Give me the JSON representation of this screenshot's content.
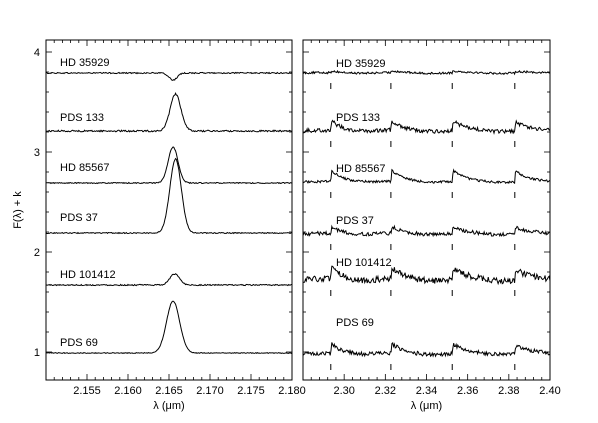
{
  "chart_data": [
    {
      "type": "line",
      "panel": "left",
      "xlabel": "λ (μm)",
      "ylabel": "F(λ) + k",
      "xlim": [
        2.15,
        2.18
      ],
      "ylim": [
        0.72,
        4.12
      ],
      "xticks": [
        2.155,
        2.16,
        2.165,
        2.17,
        2.175,
        2.18
      ],
      "xtick_labels": [
        "2.155",
        "2.160",
        "2.165",
        "2.170",
        "2.175",
        "2.180"
      ],
      "yticks": [
        1,
        2,
        3,
        4
      ],
      "ytick_labels": [
        "1",
        "2",
        "3",
        "4"
      ],
      "grid": false,
      "series": [
        {
          "name": "HD 35929",
          "baseline": 3.79,
          "line_center": 2.1655,
          "line_sigma": 0.0005,
          "line_amplitude": -0.07,
          "noise": 0.006
        },
        {
          "name": "PDS 133",
          "baseline": 3.21,
          "line_center": 2.1658,
          "line_sigma": 0.00065,
          "line_amplitude": 0.37,
          "noise": 0.008
        },
        {
          "name": "HD 85567",
          "baseline": 2.69,
          "line_center": 2.1655,
          "line_sigma": 0.0006,
          "line_amplitude": 0.36,
          "noise": 0.005
        },
        {
          "name": "PDS 37",
          "baseline": 2.19,
          "line_center": 2.1658,
          "line_sigma": 0.0007,
          "line_amplitude": 0.74,
          "noise": 0.005
        },
        {
          "name": "HD 101412",
          "baseline": 1.67,
          "line_center": 2.1657,
          "line_sigma": 0.0006,
          "line_amplitude": 0.11,
          "noise": 0.006
        },
        {
          "name": "PDS 69",
          "baseline": 0.99,
          "line_center": 2.1655,
          "line_sigma": 0.0008,
          "line_amplitude": 0.52,
          "noise": 0.004
        }
      ]
    },
    {
      "type": "line",
      "panel": "right",
      "xlabel": "λ (μm)",
      "xlim": [
        2.28,
        2.4
      ],
      "ylim": [
        0.72,
        4.12
      ],
      "xticks": [
        2.3,
        2.32,
        2.34,
        2.36,
        2.38,
        2.4
      ],
      "xtick_labels": [
        "2.30",
        "2.32",
        "2.34",
        "2.36",
        "2.38",
        "2.40"
      ],
      "grid": false,
      "bandhead_markers": [
        2.2935,
        2.3227,
        2.3525,
        2.3829
      ],
      "series": [
        {
          "name": "HD 35929",
          "baseline": 3.79,
          "bandhead_strength": 0.02,
          "noise": 0.01
        },
        {
          "name": "PDS 133",
          "baseline": 3.21,
          "bandhead_strength": 0.1,
          "noise": 0.02
        },
        {
          "name": "HD 85567",
          "baseline": 2.7,
          "bandhead_strength": 0.12,
          "noise": 0.012
        },
        {
          "name": "PDS 37",
          "baseline": 2.18,
          "bandhead_strength": 0.07,
          "noise": 0.018
        },
        {
          "name": "HD 101412",
          "baseline": 1.72,
          "bandhead_strength": 0.12,
          "noise": 0.03
        },
        {
          "name": "PDS 69",
          "baseline": 0.98,
          "bandhead_strength": 0.1,
          "noise": 0.02
        }
      ]
    }
  ]
}
